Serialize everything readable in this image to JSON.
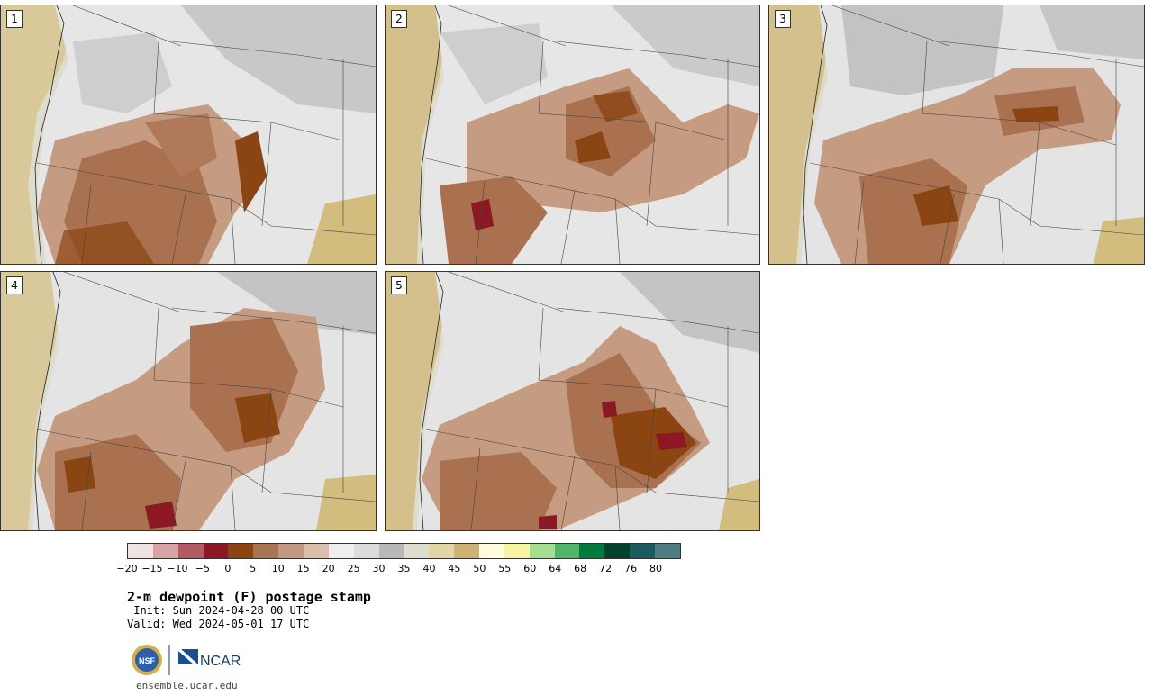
{
  "panels": [
    {
      "label": "1"
    },
    {
      "label": "2"
    },
    {
      "label": "3"
    },
    {
      "label": "4"
    },
    {
      "label": "5"
    }
  ],
  "colorbar": {
    "colors": [
      "#f0e4e2",
      "#d9a3a6",
      "#b25b62",
      "#8b1822",
      "#8b4513",
      "#a97454",
      "#c29880",
      "#dcbfaa",
      "#eeeeee",
      "#dcdcdc",
      "#b8b8b8",
      "#deddd0",
      "#e2d5a8",
      "#cdb473",
      "#fffbdb",
      "#f7f5a3",
      "#a6dd8f",
      "#4fb567",
      "#007a3e",
      "#04412c",
      "#1b5a5e",
      "#4e7d84"
    ],
    "tick_labels": [
      "−20",
      "−15",
      "−10",
      "−5",
      "0",
      "5",
      "10",
      "15",
      "20",
      "25",
      "30",
      "35",
      "40",
      "45",
      "50",
      "55",
      "60",
      "64",
      "68",
      "72",
      "76",
      "80"
    ]
  },
  "title": "2-m dewpoint (F) postage stamp",
  "init": " Init: Sun 2024-04-28 00 UTC",
  "valid": "Valid: Wed 2024-05-01 17 UTC",
  "logos": {
    "nsf": "NSF",
    "ncar": "NCAR"
  },
  "site": "ensemble.ucar.edu"
}
